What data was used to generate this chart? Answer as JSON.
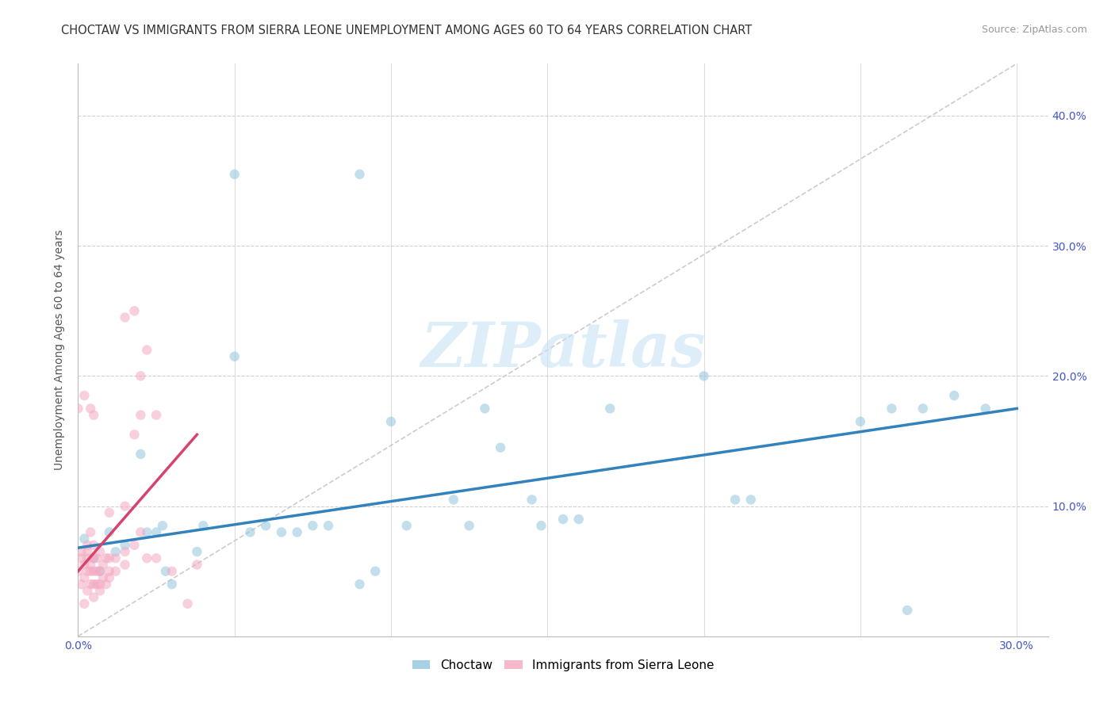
{
  "title": "CHOCTAW VS IMMIGRANTS FROM SIERRA LEONE UNEMPLOYMENT AMONG AGES 60 TO 64 YEARS CORRELATION CHART",
  "source": "Source: ZipAtlas.com",
  "ylabel": "Unemployment Among Ages 60 to 64 years",
  "xlim": [
    0.0,
    0.31
  ],
  "ylim": [
    0.0,
    0.44
  ],
  "xticks": [
    0.0,
    0.05,
    0.1,
    0.15,
    0.2,
    0.25,
    0.3
  ],
  "xticklabels": [
    "0.0%",
    "",
    "",
    "",
    "",
    "",
    "30.0%"
  ],
  "yticks": [
    0.0,
    0.1,
    0.2,
    0.3,
    0.4
  ],
  "yticklabels": [
    "",
    "10.0%",
    "20.0%",
    "30.0%",
    "40.0%"
  ],
  "watermark": "ZIPatlas",
  "blue_scatter": [
    [
      0.002,
      0.075
    ],
    [
      0.005,
      0.06
    ],
    [
      0.007,
      0.05
    ],
    [
      0.01,
      0.08
    ],
    [
      0.012,
      0.065
    ],
    [
      0.015,
      0.07
    ],
    [
      0.02,
      0.14
    ],
    [
      0.022,
      0.08
    ],
    [
      0.025,
      0.08
    ],
    [
      0.027,
      0.085
    ],
    [
      0.028,
      0.05
    ],
    [
      0.03,
      0.04
    ],
    [
      0.038,
      0.065
    ],
    [
      0.04,
      0.085
    ],
    [
      0.055,
      0.08
    ],
    [
      0.06,
      0.085
    ],
    [
      0.065,
      0.08
    ],
    [
      0.07,
      0.08
    ],
    [
      0.075,
      0.085
    ],
    [
      0.08,
      0.085
    ],
    [
      0.09,
      0.04
    ],
    [
      0.095,
      0.05
    ],
    [
      0.1,
      0.165
    ],
    [
      0.105,
      0.085
    ],
    [
      0.12,
      0.105
    ],
    [
      0.125,
      0.085
    ],
    [
      0.13,
      0.175
    ],
    [
      0.135,
      0.145
    ],
    [
      0.145,
      0.105
    ],
    [
      0.148,
      0.085
    ],
    [
      0.155,
      0.09
    ],
    [
      0.16,
      0.09
    ],
    [
      0.05,
      0.215
    ],
    [
      0.09,
      0.355
    ],
    [
      0.2,
      0.2
    ],
    [
      0.21,
      0.105
    ],
    [
      0.215,
      0.105
    ],
    [
      0.05,
      0.355
    ],
    [
      0.17,
      0.175
    ],
    [
      0.25,
      0.165
    ],
    [
      0.26,
      0.175
    ],
    [
      0.265,
      0.02
    ],
    [
      0.27,
      0.175
    ],
    [
      0.28,
      0.185
    ],
    [
      0.29,
      0.175
    ]
  ],
  "pink_scatter": [
    [
      0.0,
      0.05
    ],
    [
      0.001,
      0.04
    ],
    [
      0.001,
      0.06
    ],
    [
      0.001,
      0.065
    ],
    [
      0.002,
      0.025
    ],
    [
      0.002,
      0.045
    ],
    [
      0.002,
      0.055
    ],
    [
      0.003,
      0.035
    ],
    [
      0.003,
      0.05
    ],
    [
      0.003,
      0.06
    ],
    [
      0.003,
      0.065
    ],
    [
      0.003,
      0.07
    ],
    [
      0.004,
      0.04
    ],
    [
      0.004,
      0.05
    ],
    [
      0.004,
      0.055
    ],
    [
      0.004,
      0.08
    ],
    [
      0.005,
      0.03
    ],
    [
      0.005,
      0.04
    ],
    [
      0.005,
      0.05
    ],
    [
      0.005,
      0.06
    ],
    [
      0.005,
      0.07
    ],
    [
      0.006,
      0.04
    ],
    [
      0.006,
      0.05
    ],
    [
      0.006,
      0.06
    ],
    [
      0.007,
      0.035
    ],
    [
      0.007,
      0.04
    ],
    [
      0.007,
      0.05
    ],
    [
      0.007,
      0.065
    ],
    [
      0.008,
      0.045
    ],
    [
      0.008,
      0.055
    ],
    [
      0.009,
      0.04
    ],
    [
      0.009,
      0.06
    ],
    [
      0.01,
      0.045
    ],
    [
      0.01,
      0.05
    ],
    [
      0.01,
      0.06
    ],
    [
      0.012,
      0.05
    ],
    [
      0.012,
      0.06
    ],
    [
      0.015,
      0.055
    ],
    [
      0.015,
      0.065
    ],
    [
      0.018,
      0.07
    ],
    [
      0.02,
      0.08
    ],
    [
      0.022,
      0.06
    ],
    [
      0.025,
      0.06
    ],
    [
      0.03,
      0.05
    ],
    [
      0.035,
      0.025
    ],
    [
      0.038,
      0.055
    ],
    [
      0.005,
      0.17
    ],
    [
      0.01,
      0.095
    ],
    [
      0.015,
      0.1
    ],
    [
      0.018,
      0.155
    ],
    [
      0.015,
      0.245
    ],
    [
      0.02,
      0.17
    ],
    [
      0.025,
      0.17
    ],
    [
      0.0,
      0.175
    ],
    [
      0.002,
      0.185
    ],
    [
      0.004,
      0.175
    ],
    [
      0.018,
      0.25
    ],
    [
      0.02,
      0.2
    ],
    [
      0.022,
      0.22
    ]
  ],
  "blue_line": {
    "x0": 0.0,
    "y0": 0.068,
    "x1": 0.3,
    "y1": 0.175
  },
  "pink_line": {
    "x0": 0.0,
    "y0": 0.05,
    "x1": 0.038,
    "y1": 0.155
  },
  "diagonal_line": {
    "x0": 0.0,
    "y0": 0.0,
    "x1": 0.3,
    "y1": 0.44
  },
  "bg_color": "#ffffff",
  "grid_color": "#d0d0d0",
  "scatter_alpha": 0.55,
  "scatter_size": 80,
  "blue_color": "#92c5de",
  "pink_color": "#f4a8c0",
  "blue_line_color": "#3182bd",
  "pink_line_color": "#d6446e",
  "diag_line_color": "#cccccc",
  "title_fontsize": 10.5,
  "axis_label_fontsize": 10,
  "tick_fontsize": 10,
  "tick_label_color": "#4455cc",
  "legend_blue_text_color": "#2266cc",
  "legend_pink_text_color": "#cc3366"
}
